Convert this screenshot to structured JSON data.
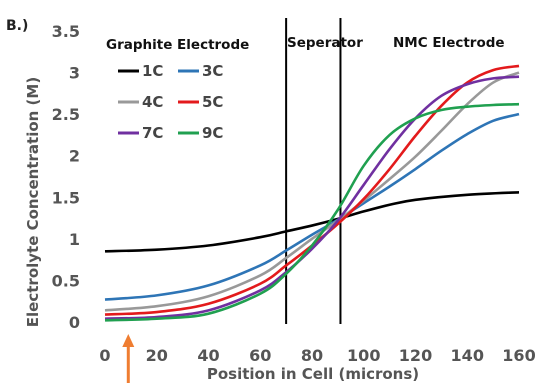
{
  "panel_label": "B.)",
  "chart_data": {
    "type": "line",
    "xlabel": "Position in Cell (microns)",
    "ylabel": "Electrolyte Concentration (M)",
    "xlim": [
      0,
      160
    ],
    "ylim": [
      0,
      3.5
    ],
    "xticks": [
      0,
      20,
      40,
      60,
      80,
      100,
      120,
      140,
      160
    ],
    "yticks": [
      0,
      0.5,
      1,
      1.5,
      2,
      2.5,
      3,
      3.5
    ],
    "x_tick_labels": [
      "0",
      "20",
      "40",
      "60",
      "80",
      "100",
      "120",
      "140",
      "160"
    ],
    "y_tick_labels": [
      "0",
      "0.5",
      "1",
      "1.5",
      "2",
      "2.5",
      "3",
      "3.5"
    ],
    "grid": "none",
    "legend_placement": "top-left",
    "regions": [
      {
        "label": "Graphite Electrode",
        "x_start": 0,
        "x_end": 70
      },
      {
        "label": "Seperator",
        "x_start": 70,
        "x_end": 91
      },
      {
        "label": "NMC Electrode",
        "x_start": 91,
        "x_end": 160
      }
    ],
    "boundaries_x": [
      70,
      91
    ],
    "annotation": {
      "type": "arrow",
      "color": "#ef7d31",
      "x": 9
    },
    "series": [
      {
        "name": "1C",
        "color": "#000000",
        "x": [
          0,
          20,
          40,
          60,
          70,
          80,
          90,
          100,
          110,
          120,
          140,
          160
        ],
        "y": [
          0.85,
          0.87,
          0.92,
          1.02,
          1.09,
          1.16,
          1.24,
          1.33,
          1.41,
          1.47,
          1.53,
          1.56
        ]
      },
      {
        "name": "3C",
        "color": "#2e75b6",
        "x": [
          0,
          20,
          40,
          60,
          70,
          80,
          90,
          100,
          110,
          120,
          130,
          140,
          150,
          160
        ],
        "y": [
          0.27,
          0.32,
          0.44,
          0.68,
          0.86,
          1.05,
          1.23,
          1.43,
          1.63,
          1.84,
          2.06,
          2.26,
          2.42,
          2.5
        ]
      },
      {
        "name": "4C",
        "color": "#999999",
        "x": [
          0,
          20,
          40,
          60,
          70,
          80,
          90,
          100,
          110,
          120,
          130,
          140,
          150,
          160
        ],
        "y": [
          0.14,
          0.19,
          0.31,
          0.56,
          0.77,
          1.0,
          1.22,
          1.46,
          1.72,
          1.99,
          2.3,
          2.62,
          2.88,
          3.0
        ]
      },
      {
        "name": "5C",
        "color": "#e31a1c",
        "x": [
          0,
          20,
          40,
          60,
          70,
          80,
          90,
          100,
          110,
          120,
          130,
          140,
          150,
          160
        ],
        "y": [
          0.09,
          0.12,
          0.22,
          0.46,
          0.68,
          0.92,
          1.18,
          1.48,
          1.84,
          2.24,
          2.6,
          2.88,
          3.03,
          3.08
        ]
      },
      {
        "name": "7C",
        "color": "#7030a0",
        "x": [
          0,
          20,
          40,
          60,
          70,
          80,
          90,
          100,
          110,
          120,
          130,
          140,
          150,
          160
        ],
        "y": [
          0.04,
          0.06,
          0.14,
          0.38,
          0.6,
          0.88,
          1.22,
          1.65,
          2.08,
          2.45,
          2.72,
          2.86,
          2.93,
          2.95
        ]
      },
      {
        "name": "9C",
        "color": "#20a050",
        "x": [
          0,
          20,
          40,
          60,
          70,
          80,
          90,
          100,
          110,
          120,
          130,
          140,
          150,
          160
        ],
        "y": [
          0.02,
          0.04,
          0.1,
          0.34,
          0.58,
          0.92,
          1.35,
          1.88,
          2.25,
          2.45,
          2.55,
          2.59,
          2.61,
          2.62
        ]
      }
    ]
  }
}
